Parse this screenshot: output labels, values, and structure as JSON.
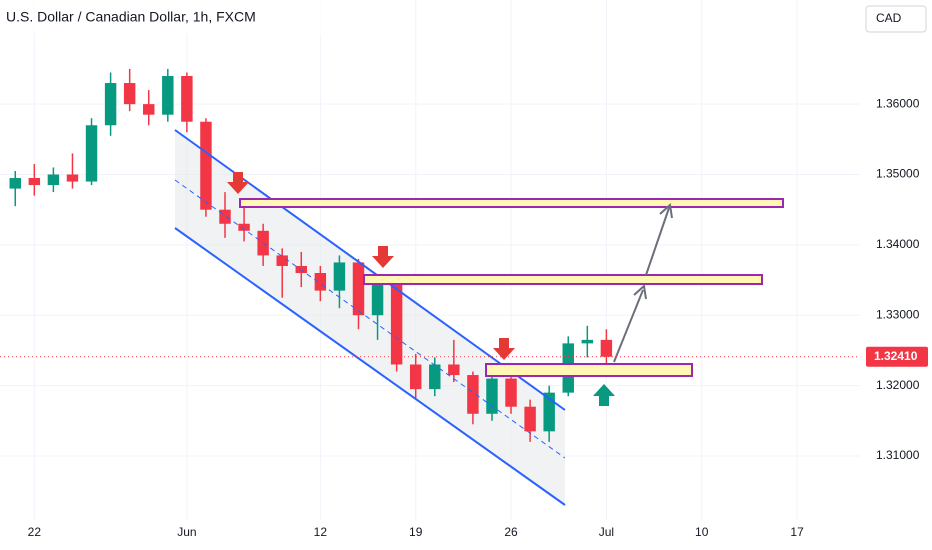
{
  "chart_data": {
    "type": "candlestick",
    "title": "U.S. Dollar / Canadian Dollar, 1h, FXCM",
    "currency": "CAD",
    "x": [
      -1,
      0,
      1,
      2,
      3,
      4,
      5,
      6,
      7,
      8,
      9,
      10,
      11,
      12,
      13,
      14,
      15,
      16,
      17,
      18,
      19,
      20,
      21,
      22,
      23,
      24,
      25,
      26,
      27,
      28,
      29,
      30
    ],
    "open": [
      1.348,
      1.3495,
      1.3485,
      1.35,
      1.349,
      1.357,
      1.363,
      1.36,
      1.3585,
      1.364,
      1.3575,
      1.345,
      1.343,
      1.342,
      1.3385,
      1.337,
      1.336,
      1.3335,
      1.3375,
      1.33,
      1.3345,
      1.323,
      1.3195,
      1.323,
      1.3215,
      1.316,
      1.321,
      1.317,
      1.3135,
      1.319,
      1.326,
      1.3265
    ],
    "high": [
      1.3505,
      1.3515,
      1.351,
      1.353,
      1.358,
      1.3645,
      1.365,
      1.362,
      1.365,
      1.3645,
      1.358,
      1.3475,
      1.346,
      1.343,
      1.3395,
      1.339,
      1.337,
      1.3385,
      1.338,
      1.3355,
      1.335,
      1.3245,
      1.324,
      1.3265,
      1.322,
      1.322,
      1.3215,
      1.318,
      1.32,
      1.327,
      1.3285,
      1.328
    ],
    "low": [
      1.3455,
      1.347,
      1.3475,
      1.348,
      1.3485,
      1.3555,
      1.359,
      1.357,
      1.3575,
      1.356,
      1.344,
      1.341,
      1.3405,
      1.337,
      1.3325,
      1.334,
      1.332,
      1.331,
      1.328,
      1.3265,
      1.322,
      1.318,
      1.3185,
      1.3205,
      1.3145,
      1.315,
      1.316,
      1.312,
      1.312,
      1.3185,
      1.324,
      1.322
    ],
    "close": [
      1.3495,
      1.3485,
      1.35,
      1.349,
      1.357,
      1.363,
      1.36,
      1.3585,
      1.364,
      1.3575,
      1.345,
      1.343,
      1.342,
      1.3385,
      1.337,
      1.336,
      1.3335,
      1.3375,
      1.33,
      1.3345,
      1.323,
      1.3195,
      1.323,
      1.3215,
      1.316,
      1.321,
      1.317,
      1.3135,
      1.319,
      1.326,
      1.3265,
      1.3241
    ],
    "up_color": "#089981",
    "down_color": "#f23645",
    "last_price": 1.3241,
    "last_price_label": "1.32410",
    "xlim": [
      -1.8,
      43.3
    ],
    "xticks": [
      {
        "value": 0,
        "label": "22"
      },
      {
        "value": 8,
        "label": "Jun"
      },
      {
        "value": 15,
        "label": "12"
      },
      {
        "value": 20,
        "label": "19"
      },
      {
        "value": 25,
        "label": "26"
      },
      {
        "value": 30,
        "label": "Jul"
      },
      {
        "value": 35,
        "label": "10"
      },
      {
        "value": 40,
        "label": "17"
      }
    ],
    "ylim": [
      1.3009,
      1.3748
    ],
    "yticks": [
      {
        "value": 1.31,
        "label": "1.31000"
      },
      {
        "value": 1.32,
        "label": "1.32000"
      },
      {
        "value": 1.33,
        "label": "1.33000"
      },
      {
        "value": 1.34,
        "label": "1.34000"
      },
      {
        "value": 1.35,
        "label": "1.35000"
      },
      {
        "value": 1.36,
        "label": "1.36000"
      }
    ],
    "grid": true
  }
}
